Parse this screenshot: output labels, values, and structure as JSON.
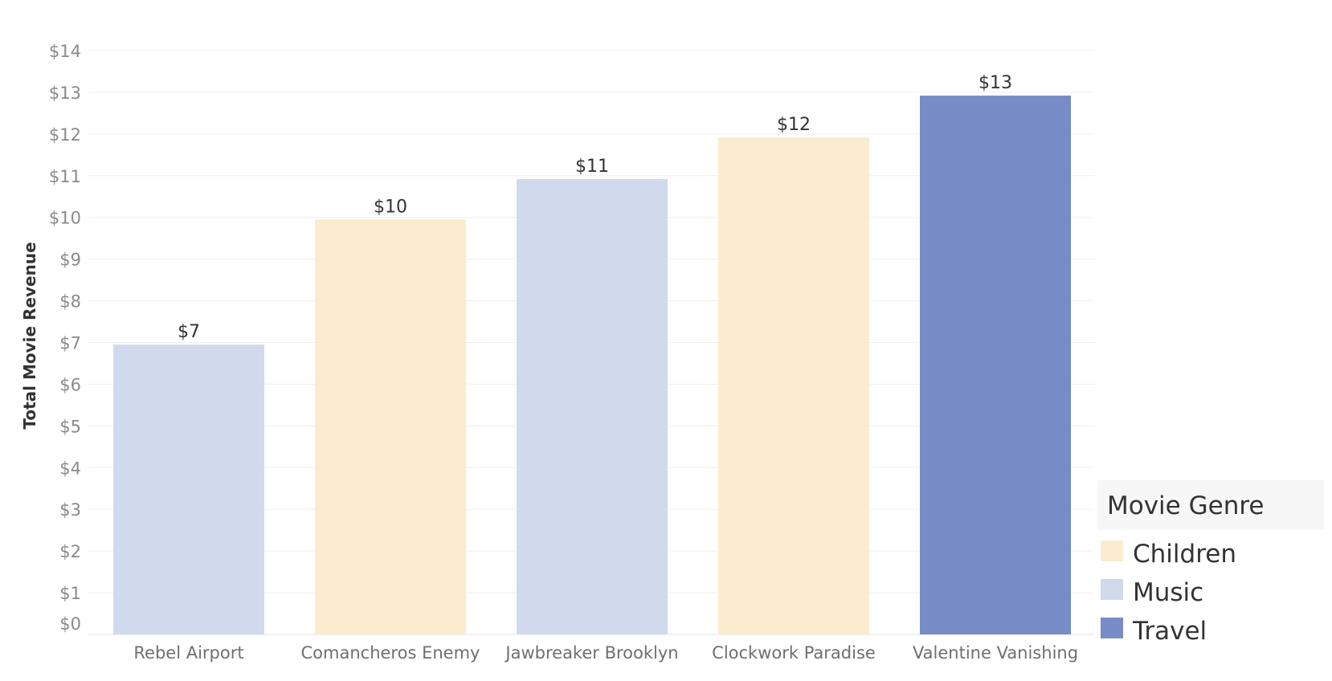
{
  "chart_data": {
    "type": "bar",
    "categories": [
      "Rebel Airport",
      "Comancheros Enemy",
      "Jawbreaker Brooklyn",
      "Clockwork Paradise",
      "Valentine Vanishing"
    ],
    "values": [
      7,
      10,
      11,
      12,
      13
    ],
    "plotted_values": [
      6.95,
      9.95,
      10.92,
      11.92,
      12.92
    ],
    "data_labels": [
      "$7",
      "$10",
      "$11",
      "$12",
      "$13"
    ],
    "genres": [
      "Music",
      "Children",
      "Music",
      "Children",
      "Travel"
    ],
    "ylabel": "Total Movie Revenue",
    "ylim": [
      0,
      14
    ],
    "y_ticks": [
      0,
      1,
      2,
      3,
      4,
      5,
      6,
      7,
      8,
      9,
      10,
      11,
      12,
      13,
      14
    ],
    "y_tick_labels": [
      "$0",
      "$1",
      "$2",
      "$3",
      "$4",
      "$5",
      "$6",
      "$7",
      "$8",
      "$9",
      "$10",
      "$11",
      "$12",
      "$13",
      "$14"
    ],
    "grid": true,
    "legend": {
      "title": "Movie Genre",
      "placement": "bottom-right",
      "items": [
        {
          "label": "Children",
          "color": "#fbecd0"
        },
        {
          "label": "Music",
          "color": "#d1d9ed"
        },
        {
          "label": "Travel",
          "color": "#778bc6"
        }
      ]
    }
  }
}
